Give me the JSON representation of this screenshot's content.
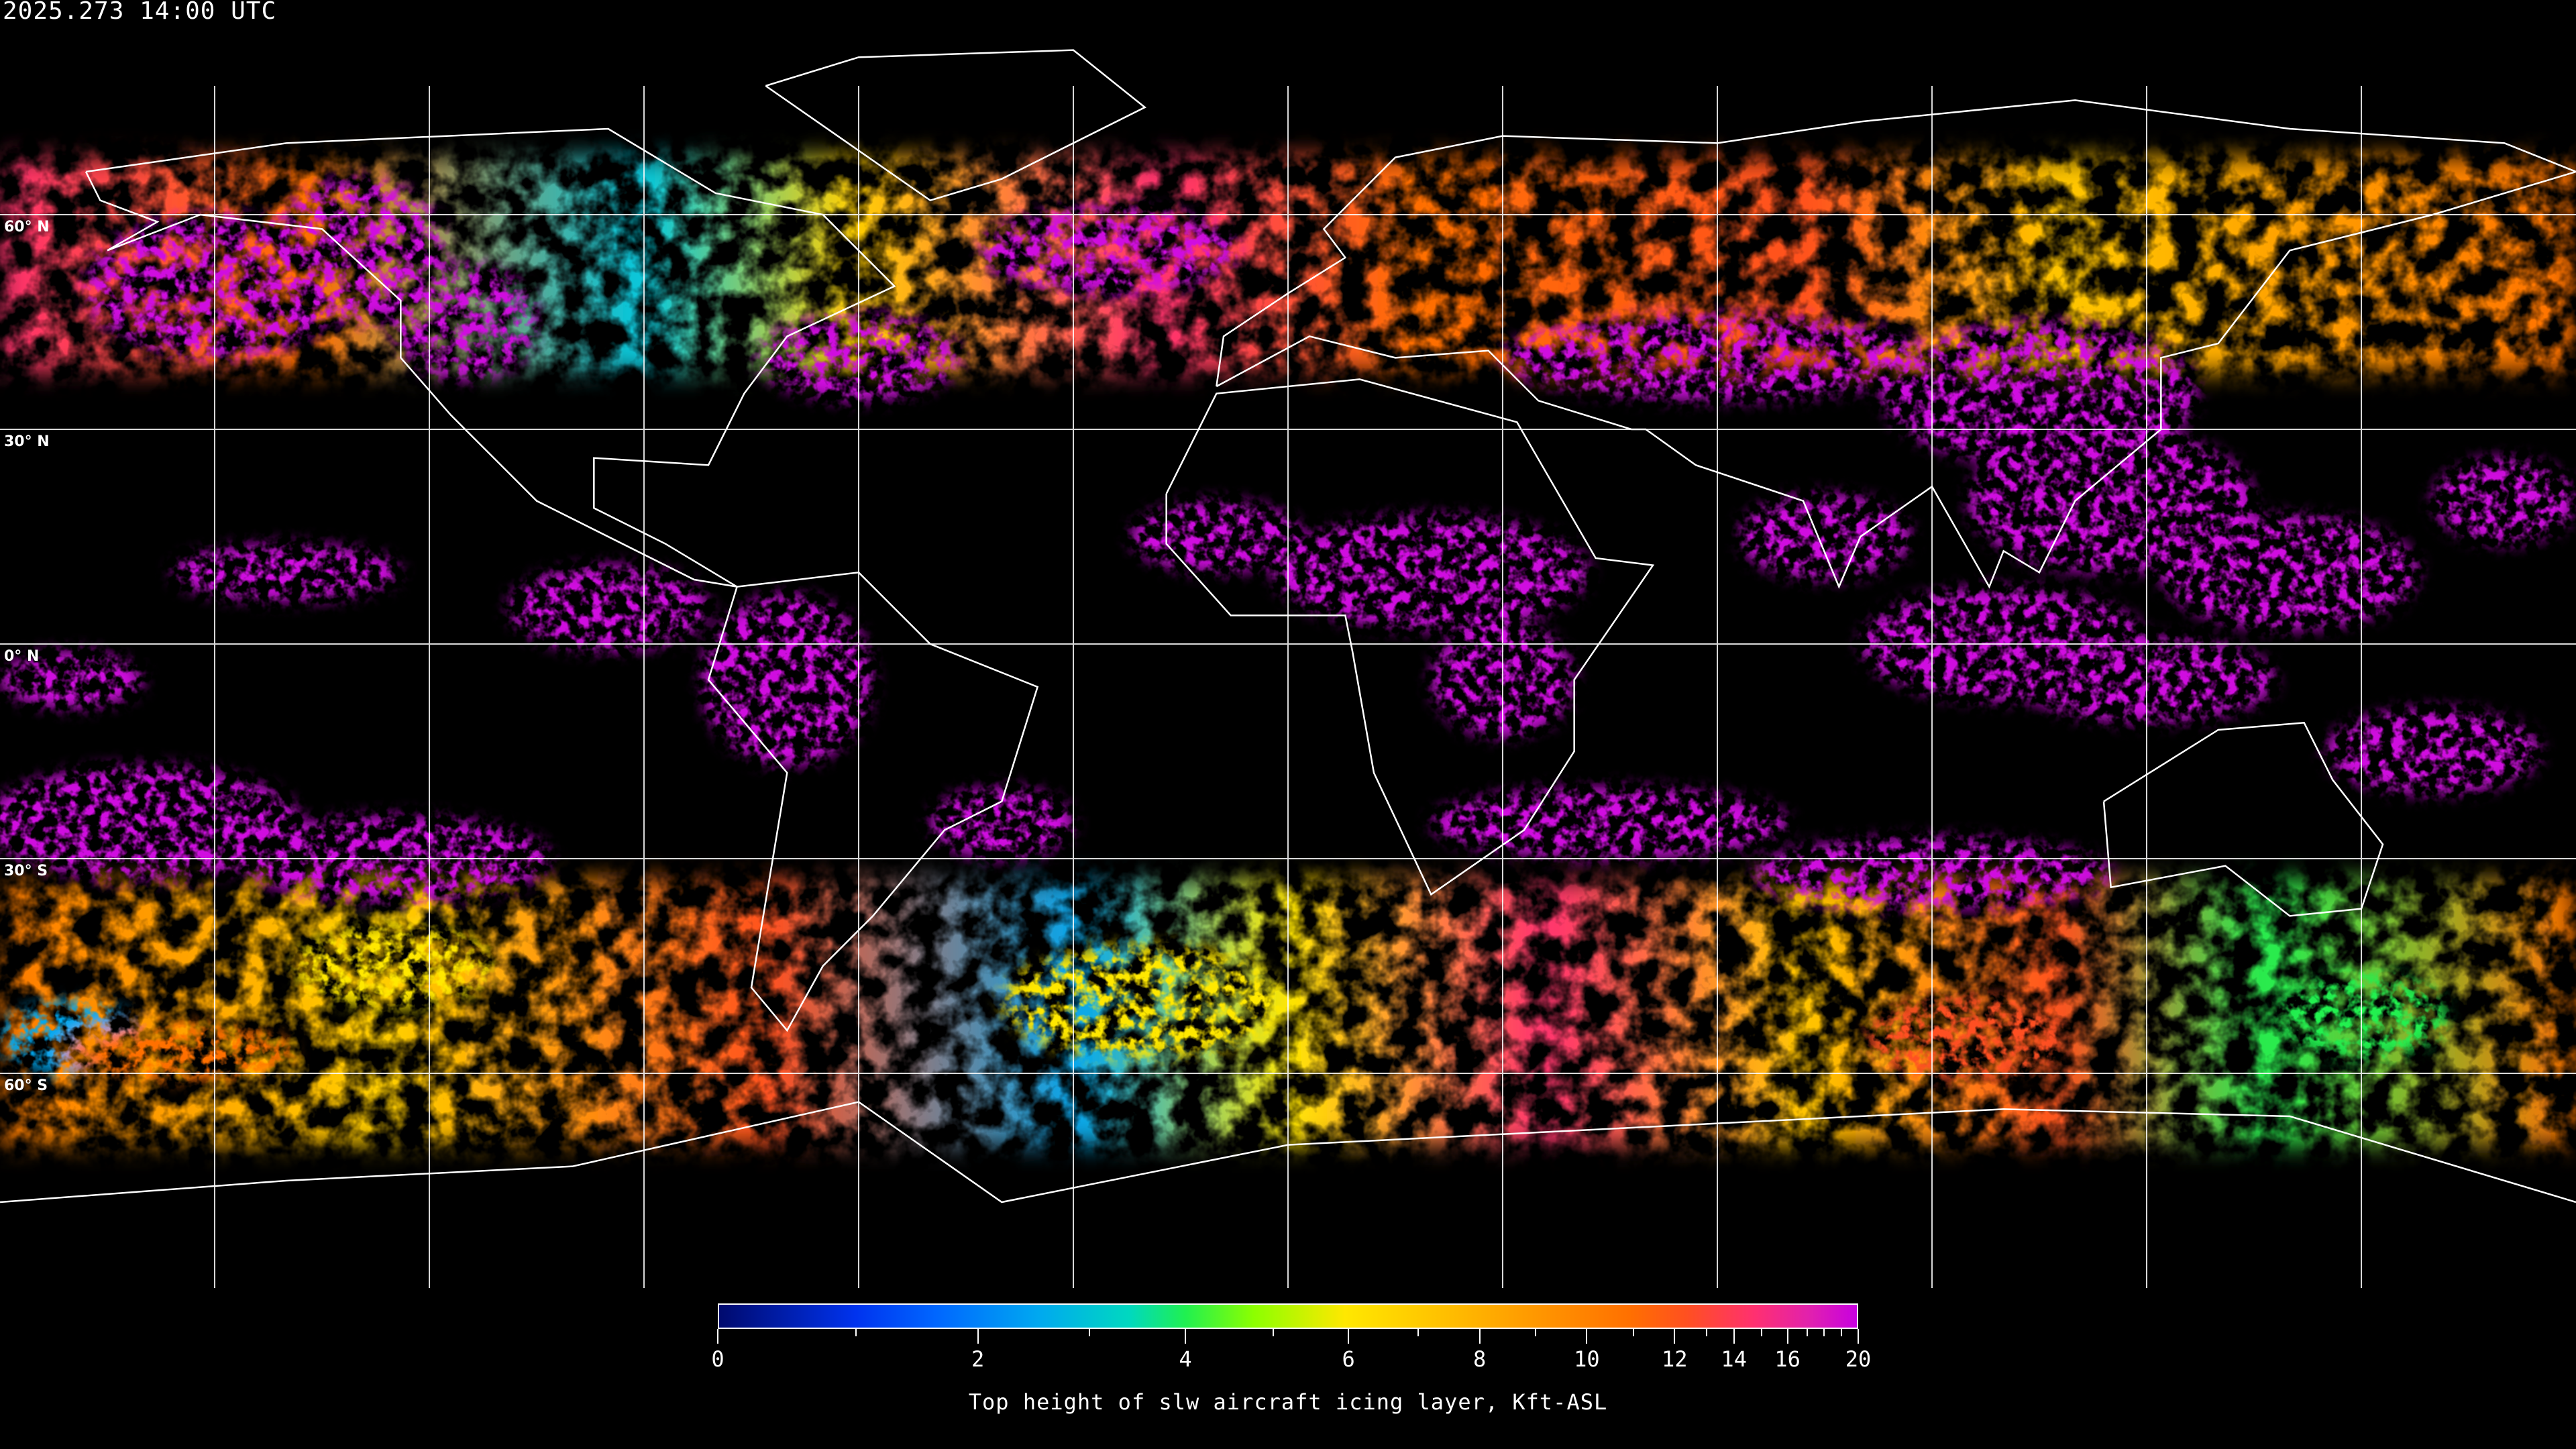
{
  "header": {
    "timestamp": "2025.273 14:00 UTC"
  },
  "map": {
    "projection": "equirectangular",
    "graticule_step_deg": 30,
    "lat_labels": [
      "60° N",
      "30° N",
      "0° N",
      "30° S",
      "60° S"
    ],
    "background_color": "#000000",
    "coastline_color": "#ffffff"
  },
  "colorbar": {
    "title": "Top height of slw aircraft icing layer, Kft-ASL",
    "min": 0,
    "max": 20,
    "tick_labels": [
      "0",
      "2",
      "4",
      "6",
      "8",
      "10",
      "12",
      "14",
      "16",
      "20"
    ],
    "minor_ticks": [
      1,
      3,
      5,
      7,
      9,
      11,
      13,
      15,
      17,
      18,
      19
    ],
    "colors": [
      "#000a6e",
      "#0033ee",
      "#00a8f0",
      "#20f050",
      "#8cff00",
      "#ffe800",
      "#ffa000",
      "#ff7000",
      "#ff3070",
      "#c800e0"
    ]
  }
}
